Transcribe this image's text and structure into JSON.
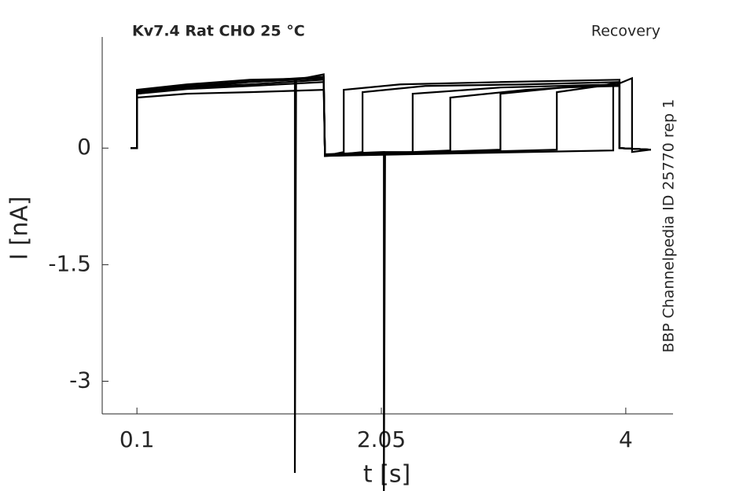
{
  "chart_data": {
    "type": "line",
    "title": "Kv7.4  Rat  CHO  25 °C",
    "subtitle": "Recovery",
    "annotation": "BBP Channelpedia ID 25770 rep 1",
    "xlabel": "t [s]",
    "ylabel": "I [nA]",
    "xlim": [
      -0.177,
      4.377
    ],
    "ylim": [
      -3.42,
      1.43
    ],
    "xticks": [
      0.1,
      2.05,
      4
    ],
    "yticks": [
      -3,
      -1.5,
      0
    ],
    "color": "#000000",
    "series": [
      {
        "x": [
          0.05,
          0.1,
          0.1,
          0.5,
          1.0,
          1.36,
          1.36,
          1.37,
          1.59,
          1.6,
          1.75,
          1.75,
          2.2,
          3.0,
          3.95,
          3.95,
          4.2
        ],
        "values": [
          0,
          0,
          0.7,
          0.78,
          0.85,
          0.88,
          -4.18,
          0.88,
          0.95,
          -0.1,
          -0.05,
          0.75,
          0.82,
          0.85,
          0.88,
          0,
          -0.02
        ]
      },
      {
        "x": [
          0.05,
          0.1,
          0.1,
          0.5,
          1.0,
          1.59,
          1.6,
          1.9,
          1.9,
          2.4,
          3.2,
          3.95,
          3.95,
          4.2
        ],
        "values": [
          0,
          0,
          0.65,
          0.7,
          0.72,
          0.75,
          -0.1,
          -0.05,
          0.72,
          0.8,
          0.82,
          0.85,
          0,
          -0.02
        ]
      },
      {
        "x": [
          0.05,
          0.1,
          0.1,
          0.5,
          1.0,
          1.59,
          1.6,
          2.07,
          2.07,
          2.08,
          2.3,
          2.3,
          3.0,
          3.95,
          3.95,
          4.2
        ],
        "values": [
          0,
          0,
          0.75,
          0.82,
          0.88,
          0.9,
          -0.08,
          -0.05,
          -4.5,
          -0.05,
          -0.05,
          0.7,
          0.78,
          0.82,
          0,
          -0.02
        ]
      },
      {
        "x": [
          0.05,
          0.1,
          0.1,
          0.5,
          1.0,
          1.59,
          1.6,
          2.6,
          2.6,
          3.2,
          3.95,
          3.95,
          4.2
        ],
        "values": [
          0,
          0,
          0.72,
          0.8,
          0.85,
          0.9,
          -0.1,
          -0.03,
          0.65,
          0.75,
          0.82,
          0,
          -0.02
        ]
      },
      {
        "x": [
          0.05,
          0.1,
          0.1,
          0.5,
          1.0,
          1.59,
          1.6,
          3.0,
          3.0,
          3.5,
          3.95,
          3.95,
          4.2
        ],
        "values": [
          0,
          0,
          0.7,
          0.76,
          0.8,
          0.85,
          -0.1,
          -0.02,
          0.7,
          0.78,
          0.8,
          0,
          -0.02
        ]
      },
      {
        "x": [
          0.05,
          0.1,
          0.1,
          0.5,
          1.0,
          1.59,
          1.6,
          3.45,
          3.45,
          3.8,
          3.95,
          3.95,
          4.2
        ],
        "values": [
          0,
          0,
          0.73,
          0.8,
          0.86,
          0.92,
          -0.1,
          -0.02,
          0.72,
          0.8,
          0.85,
          0,
          -0.02
        ]
      },
      {
        "x": [
          0.05,
          0.1,
          0.1,
          0.5,
          1.0,
          1.59,
          1.6,
          3.9,
          3.9,
          4.05,
          4.05,
          4.2
        ],
        "values": [
          0,
          0,
          0.7,
          0.78,
          0.82,
          0.88,
          -0.1,
          -0.03,
          0.8,
          0.9,
          -0.05,
          -0.02
        ]
      }
    ]
  }
}
